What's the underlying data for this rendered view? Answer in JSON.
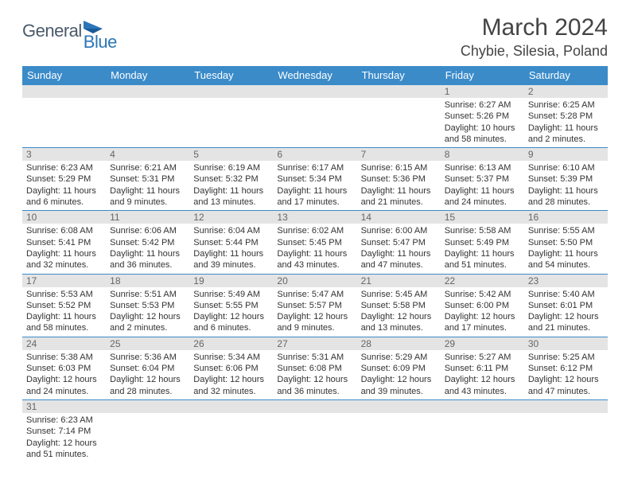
{
  "logo": {
    "text_general": "General",
    "text_blue": "Blue"
  },
  "title": "March 2024",
  "location": "Chybie, Silesia, Poland",
  "colors": {
    "header_bg": "#3b8bc9",
    "header_text": "#ffffff",
    "daynum_bg": "#e4e4e4",
    "daynum_text": "#666666",
    "body_text": "#333333",
    "border": "#3b8bc9",
    "logo_gray": "#4a5a6a",
    "logo_blue": "#2a76b8"
  },
  "daysOfWeek": [
    "Sunday",
    "Monday",
    "Tuesday",
    "Wednesday",
    "Thursday",
    "Friday",
    "Saturday"
  ],
  "weeks": [
    [
      null,
      null,
      null,
      null,
      null,
      {
        "n": "1",
        "sr": "Sunrise: 6:27 AM",
        "ss": "Sunset: 5:26 PM",
        "d1": "Daylight: 10 hours",
        "d2": "and 58 minutes."
      },
      {
        "n": "2",
        "sr": "Sunrise: 6:25 AM",
        "ss": "Sunset: 5:28 PM",
        "d1": "Daylight: 11 hours",
        "d2": "and 2 minutes."
      }
    ],
    [
      {
        "n": "3",
        "sr": "Sunrise: 6:23 AM",
        "ss": "Sunset: 5:29 PM",
        "d1": "Daylight: 11 hours",
        "d2": "and 6 minutes."
      },
      {
        "n": "4",
        "sr": "Sunrise: 6:21 AM",
        "ss": "Sunset: 5:31 PM",
        "d1": "Daylight: 11 hours",
        "d2": "and 9 minutes."
      },
      {
        "n": "5",
        "sr": "Sunrise: 6:19 AM",
        "ss": "Sunset: 5:32 PM",
        "d1": "Daylight: 11 hours",
        "d2": "and 13 minutes."
      },
      {
        "n": "6",
        "sr": "Sunrise: 6:17 AM",
        "ss": "Sunset: 5:34 PM",
        "d1": "Daylight: 11 hours",
        "d2": "and 17 minutes."
      },
      {
        "n": "7",
        "sr": "Sunrise: 6:15 AM",
        "ss": "Sunset: 5:36 PM",
        "d1": "Daylight: 11 hours",
        "d2": "and 21 minutes."
      },
      {
        "n": "8",
        "sr": "Sunrise: 6:13 AM",
        "ss": "Sunset: 5:37 PM",
        "d1": "Daylight: 11 hours",
        "d2": "and 24 minutes."
      },
      {
        "n": "9",
        "sr": "Sunrise: 6:10 AM",
        "ss": "Sunset: 5:39 PM",
        "d1": "Daylight: 11 hours",
        "d2": "and 28 minutes."
      }
    ],
    [
      {
        "n": "10",
        "sr": "Sunrise: 6:08 AM",
        "ss": "Sunset: 5:41 PM",
        "d1": "Daylight: 11 hours",
        "d2": "and 32 minutes."
      },
      {
        "n": "11",
        "sr": "Sunrise: 6:06 AM",
        "ss": "Sunset: 5:42 PM",
        "d1": "Daylight: 11 hours",
        "d2": "and 36 minutes."
      },
      {
        "n": "12",
        "sr": "Sunrise: 6:04 AM",
        "ss": "Sunset: 5:44 PM",
        "d1": "Daylight: 11 hours",
        "d2": "and 39 minutes."
      },
      {
        "n": "13",
        "sr": "Sunrise: 6:02 AM",
        "ss": "Sunset: 5:45 PM",
        "d1": "Daylight: 11 hours",
        "d2": "and 43 minutes."
      },
      {
        "n": "14",
        "sr": "Sunrise: 6:00 AM",
        "ss": "Sunset: 5:47 PM",
        "d1": "Daylight: 11 hours",
        "d2": "and 47 minutes."
      },
      {
        "n": "15",
        "sr": "Sunrise: 5:58 AM",
        "ss": "Sunset: 5:49 PM",
        "d1": "Daylight: 11 hours",
        "d2": "and 51 minutes."
      },
      {
        "n": "16",
        "sr": "Sunrise: 5:55 AM",
        "ss": "Sunset: 5:50 PM",
        "d1": "Daylight: 11 hours",
        "d2": "and 54 minutes."
      }
    ],
    [
      {
        "n": "17",
        "sr": "Sunrise: 5:53 AM",
        "ss": "Sunset: 5:52 PM",
        "d1": "Daylight: 11 hours",
        "d2": "and 58 minutes."
      },
      {
        "n": "18",
        "sr": "Sunrise: 5:51 AM",
        "ss": "Sunset: 5:53 PM",
        "d1": "Daylight: 12 hours",
        "d2": "and 2 minutes."
      },
      {
        "n": "19",
        "sr": "Sunrise: 5:49 AM",
        "ss": "Sunset: 5:55 PM",
        "d1": "Daylight: 12 hours",
        "d2": "and 6 minutes."
      },
      {
        "n": "20",
        "sr": "Sunrise: 5:47 AM",
        "ss": "Sunset: 5:57 PM",
        "d1": "Daylight: 12 hours",
        "d2": "and 9 minutes."
      },
      {
        "n": "21",
        "sr": "Sunrise: 5:45 AM",
        "ss": "Sunset: 5:58 PM",
        "d1": "Daylight: 12 hours",
        "d2": "and 13 minutes."
      },
      {
        "n": "22",
        "sr": "Sunrise: 5:42 AM",
        "ss": "Sunset: 6:00 PM",
        "d1": "Daylight: 12 hours",
        "d2": "and 17 minutes."
      },
      {
        "n": "23",
        "sr": "Sunrise: 5:40 AM",
        "ss": "Sunset: 6:01 PM",
        "d1": "Daylight: 12 hours",
        "d2": "and 21 minutes."
      }
    ],
    [
      {
        "n": "24",
        "sr": "Sunrise: 5:38 AM",
        "ss": "Sunset: 6:03 PM",
        "d1": "Daylight: 12 hours",
        "d2": "and 24 minutes."
      },
      {
        "n": "25",
        "sr": "Sunrise: 5:36 AM",
        "ss": "Sunset: 6:04 PM",
        "d1": "Daylight: 12 hours",
        "d2": "and 28 minutes."
      },
      {
        "n": "26",
        "sr": "Sunrise: 5:34 AM",
        "ss": "Sunset: 6:06 PM",
        "d1": "Daylight: 12 hours",
        "d2": "and 32 minutes."
      },
      {
        "n": "27",
        "sr": "Sunrise: 5:31 AM",
        "ss": "Sunset: 6:08 PM",
        "d1": "Daylight: 12 hours",
        "d2": "and 36 minutes."
      },
      {
        "n": "28",
        "sr": "Sunrise: 5:29 AM",
        "ss": "Sunset: 6:09 PM",
        "d1": "Daylight: 12 hours",
        "d2": "and 39 minutes."
      },
      {
        "n": "29",
        "sr": "Sunrise: 5:27 AM",
        "ss": "Sunset: 6:11 PM",
        "d1": "Daylight: 12 hours",
        "d2": "and 43 minutes."
      },
      {
        "n": "30",
        "sr": "Sunrise: 5:25 AM",
        "ss": "Sunset: 6:12 PM",
        "d1": "Daylight: 12 hours",
        "d2": "and 47 minutes."
      }
    ],
    [
      {
        "n": "31",
        "sr": "Sunrise: 6:23 AM",
        "ss": "Sunset: 7:14 PM",
        "d1": "Daylight: 12 hours",
        "d2": "and 51 minutes."
      },
      null,
      null,
      null,
      null,
      null,
      null
    ]
  ]
}
